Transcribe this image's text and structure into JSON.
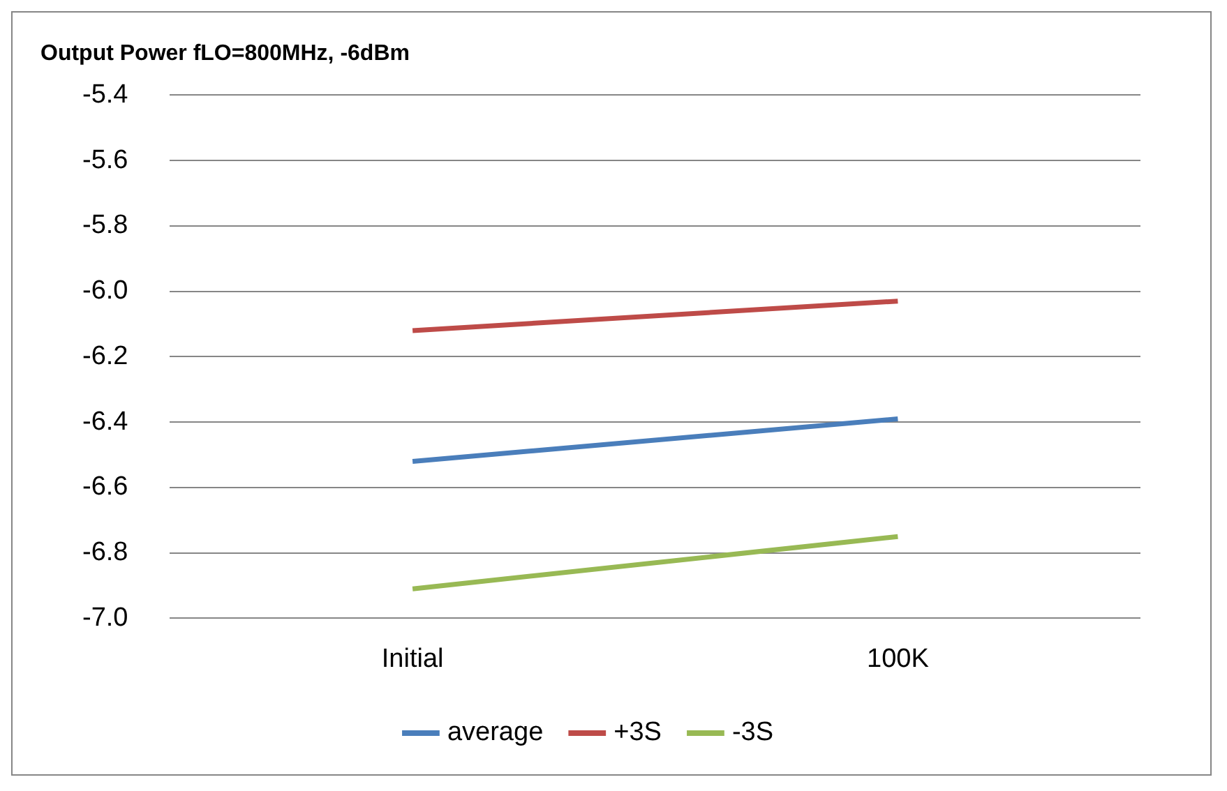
{
  "chart_data": {
    "type": "line",
    "title": "Output Power fLO=800MHz, -6dBm",
    "categories": [
      "Initial",
      "100K"
    ],
    "series": [
      {
        "name": "average",
        "color": "#4a7ebb",
        "values": [
          -6.52,
          -6.39
        ]
      },
      {
        "name": "+3S",
        "color": "#be4b48",
        "values": [
          -6.12,
          -6.03
        ]
      },
      {
        "name": "-3S",
        "color": "#98b954",
        "values": [
          -6.91,
          -6.75
        ]
      }
    ],
    "ylim": [
      -7.0,
      -5.4
    ],
    "yticks": [
      {
        "value": -7.0,
        "label": "-7.0"
      },
      -6.8,
      -6.6,
      -6.4,
      -6.2,
      {
        "value": -6.0,
        "label": "-6.0"
      },
      -5.8,
      -5.6,
      -5.4
    ],
    "grid": "y",
    "legend": "bottom",
    "marker": "none",
    "line_style": "solid"
  }
}
